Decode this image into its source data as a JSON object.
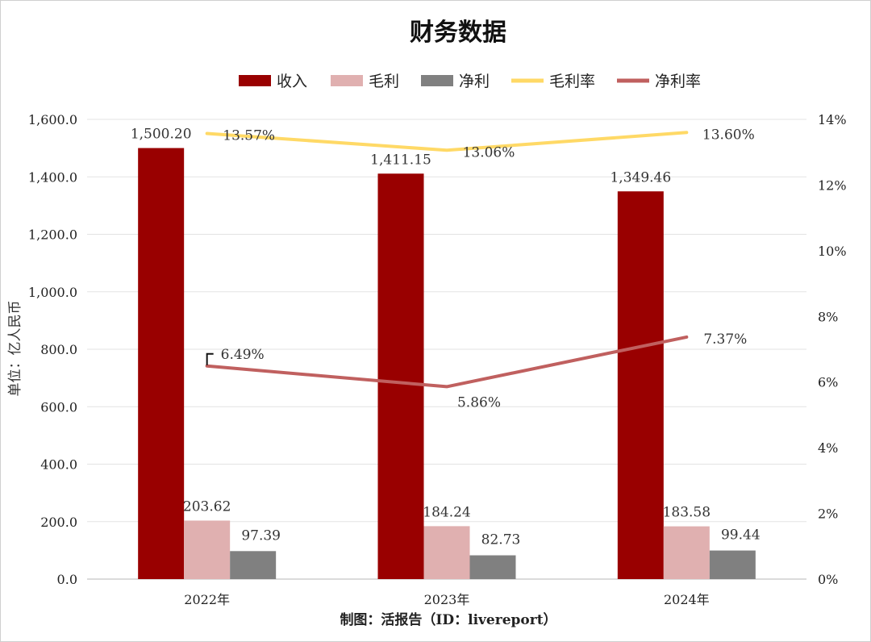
{
  "credit": "制图：活报告（ID：livereport）",
  "chart_data": {
    "type": "bar",
    "title": "财务数据",
    "ylabel": "单位：亿人民币",
    "xlabel": "",
    "categories": [
      "2022年",
      "2023年",
      "2024年"
    ],
    "ylim": [
      0,
      1600
    ],
    "y_ticks": [
      "0.0",
      "200.0",
      "400.0",
      "600.0",
      "800.0",
      "1,000.0",
      "1,200.0",
      "1,400.0",
      "1,600.0"
    ],
    "y2lim": [
      0,
      14
    ],
    "y2_ticks": [
      "0%",
      "2%",
      "4%",
      "6%",
      "8%",
      "10%",
      "12%",
      "14%"
    ],
    "grid": true,
    "legend_position": "top",
    "series": [
      {
        "name": "收入",
        "type": "bar",
        "axis": "left",
        "color": "#990000",
        "values": [
          1500.2,
          1411.15,
          1349.46
        ],
        "labels": [
          "1,500.20",
          "1,411.15",
          "1,349.46"
        ]
      },
      {
        "name": "毛利",
        "type": "bar",
        "axis": "left",
        "color": "#e0b0b0",
        "values": [
          203.62,
          184.24,
          183.58
        ],
        "labels": [
          "203.62",
          "184.24",
          "183.58"
        ]
      },
      {
        "name": "净利",
        "type": "bar",
        "axis": "left",
        "color": "#808080",
        "values": [
          97.39,
          82.73,
          99.44
        ],
        "labels": [
          "97.39",
          "82.73",
          "99.44"
        ]
      },
      {
        "name": "毛利率",
        "type": "line",
        "axis": "right",
        "color": "#ffd966",
        "values": [
          13.57,
          13.06,
          13.6
        ],
        "labels": [
          "13.57%",
          "13.06%",
          "13.60%"
        ]
      },
      {
        "name": "净利率",
        "type": "line",
        "axis": "right",
        "color": "#c0605f",
        "values": [
          6.49,
          5.86,
          7.37
        ],
        "labels": [
          "6.49%",
          "5.86%",
          "7.37%"
        ]
      }
    ]
  }
}
